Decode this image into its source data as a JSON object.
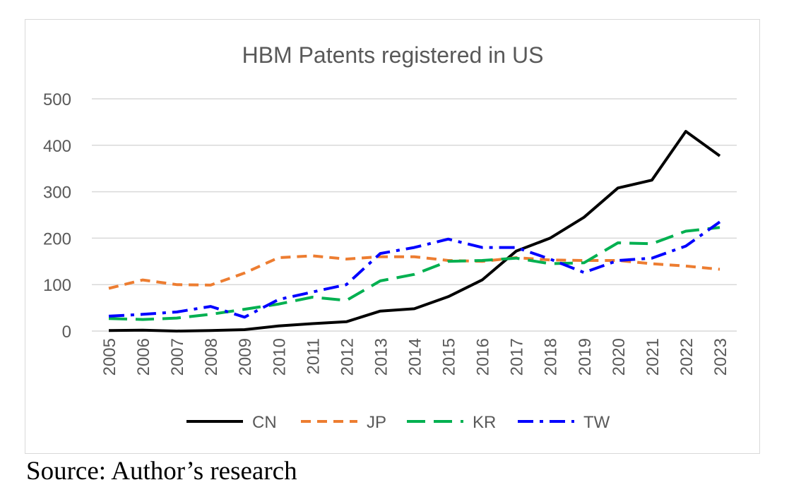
{
  "caption": "Source: Author’s research",
  "chart_data": {
    "type": "line",
    "title": "HBM Patents registered in US",
    "xlabel": "",
    "ylabel": "",
    "ylim": [
      0,
      500
    ],
    "yticks": [
      "0",
      "100",
      "200",
      "300",
      "400",
      "500"
    ],
    "grid": true,
    "legend_position": "bottom",
    "categories": [
      "2005",
      "2006",
      "2007",
      "2008",
      "2009",
      "2010",
      "2011",
      "2012",
      "2013",
      "2014",
      "2015",
      "2016",
      "2017",
      "2018",
      "2019",
      "2020",
      "2021",
      "2022",
      "2023"
    ],
    "series": [
      {
        "name": "CN",
        "color": "#000000",
        "dash": "solid",
        "values": [
          1,
          2,
          0,
          1,
          3,
          11,
          16,
          20,
          43,
          48,
          74,
          110,
          172,
          200,
          245,
          308,
          325,
          430,
          377
        ]
      },
      {
        "name": "JP",
        "color": "#ED7D31",
        "dash": "dash",
        "values": [
          92,
          110,
          100,
          99,
          125,
          158,
          162,
          155,
          160,
          160,
          152,
          150,
          158,
          153,
          152,
          152,
          145,
          140,
          133
        ]
      },
      {
        "name": "KR",
        "color": "#00B050",
        "dash": "longdash",
        "values": [
          27,
          25,
          28,
          36,
          47,
          58,
          73,
          66,
          108,
          122,
          150,
          152,
          157,
          145,
          147,
          190,
          188,
          215,
          223
        ]
      },
      {
        "name": "TW",
        "color": "#0000FF",
        "dash": "dashdot",
        "values": [
          32,
          36,
          41,
          53,
          30,
          68,
          84,
          100,
          167,
          180,
          198,
          180,
          180,
          155,
          126,
          152,
          157,
          183,
          235
        ]
      }
    ]
  }
}
